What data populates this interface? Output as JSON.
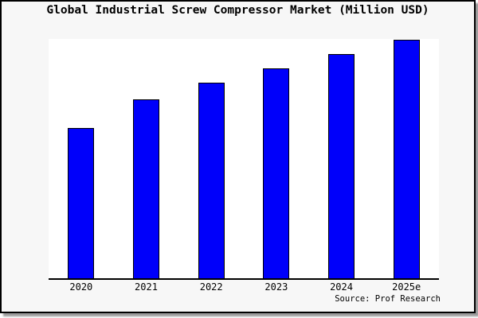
{
  "title": "Global Industrial Screw Compressor Market (Million USD)",
  "source_credit": "Source: Prof Research",
  "colors": {
    "bar_fill": "#0000fa",
    "bar_edge": "#000000",
    "frame_background": "#f7f7f7",
    "plot_background": "#ffffff",
    "axis_line": "#000000",
    "text": "#000000",
    "frame_border": "#000000",
    "drop_shadow": "#9b9b9b"
  },
  "chart_data": {
    "type": "bar",
    "title": "Global Industrial Screw Compressor Market (Million USD)",
    "categories": [
      "2020",
      "2021",
      "2022",
      "2023",
      "2024",
      "2025e"
    ],
    "values": [
      63,
      75,
      82,
      88,
      94,
      100
    ],
    "xlabel": "",
    "ylabel": "",
    "ylim": [
      0,
      100
    ],
    "grid": false,
    "legend": false,
    "y_axis_labels_visible": false,
    "bars_color": "#0000fa",
    "values_note": "No y-axis scale is shown in the image; values are relative bar heights normalized so 2025e = 100"
  }
}
